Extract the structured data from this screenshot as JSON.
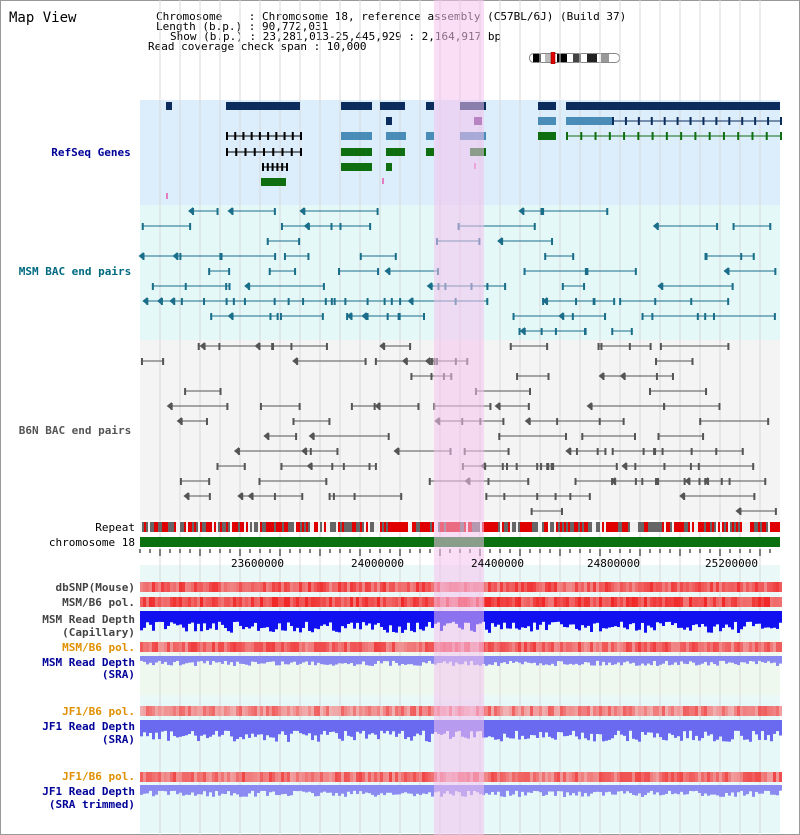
{
  "title": "Map View",
  "info": {
    "chromosome_line": "Chromosome    : Chromosome 18, reference assembly (C57BL/6J) (Build 37)",
    "length_line": "Length (b.p.) : 90,772,031",
    "show_line": "Show (b.p.) : 23,281,013-25,445,929 : 2,164,917 bp",
    "read_coverage_line": "Read coverage check span : 10,000"
  },
  "tracks": {
    "refseq": "RefSeq Genes",
    "msm_bac": "MSM BAC end pairs",
    "b6n_bac": "B6N BAC end pairs",
    "repeat": "Repeat",
    "chromosome": "chromosome 18",
    "dbsnp": "dbSNP(Mouse)",
    "msm_b6_pol_1": "MSM/B6 pol.",
    "msm_depth_cap_1": "MSM Read Depth",
    "msm_depth_cap_2": "(Capillary)",
    "msm_b6_pol_2": "MSM/B6 pol.",
    "msm_depth_sra_1": "MSM Read Depth",
    "msm_depth_sra_2": "(SRA)",
    "jf1_b6_pol_1": "JF1/B6 pol.",
    "jf1_depth_sra_1": "JF1 Read Depth",
    "jf1_depth_sra_2": "(SRA)",
    "jf1_b6_pol_2": "JF1/B6 pol.",
    "jf1_depth_trim_1": "JF1 Read Depth",
    "jf1_depth_trim_2": "(SRA trimmed)"
  },
  "axis": {
    "ticks": [
      "23600000",
      "24000000",
      "24400000",
      "24800000",
      "25200000"
    ]
  },
  "colors": {
    "refseq_bg": "#dceefb",
    "msm_bg": "#e4f8f8",
    "b6n_bg": "#f4f4f4",
    "highlight": "#f4c2ee",
    "gene_dark": "#0b2c5c",
    "gene_mid": "#4a8cb8",
    "gene_green": "#0e6e10",
    "msm_pair": "#1a6e8a",
    "b6n_pair": "#555555",
    "chromosome_bar": "#0a7010",
    "label_navy": "#000099",
    "label_teal": "#006a80",
    "label_orange": "#e09000"
  }
}
